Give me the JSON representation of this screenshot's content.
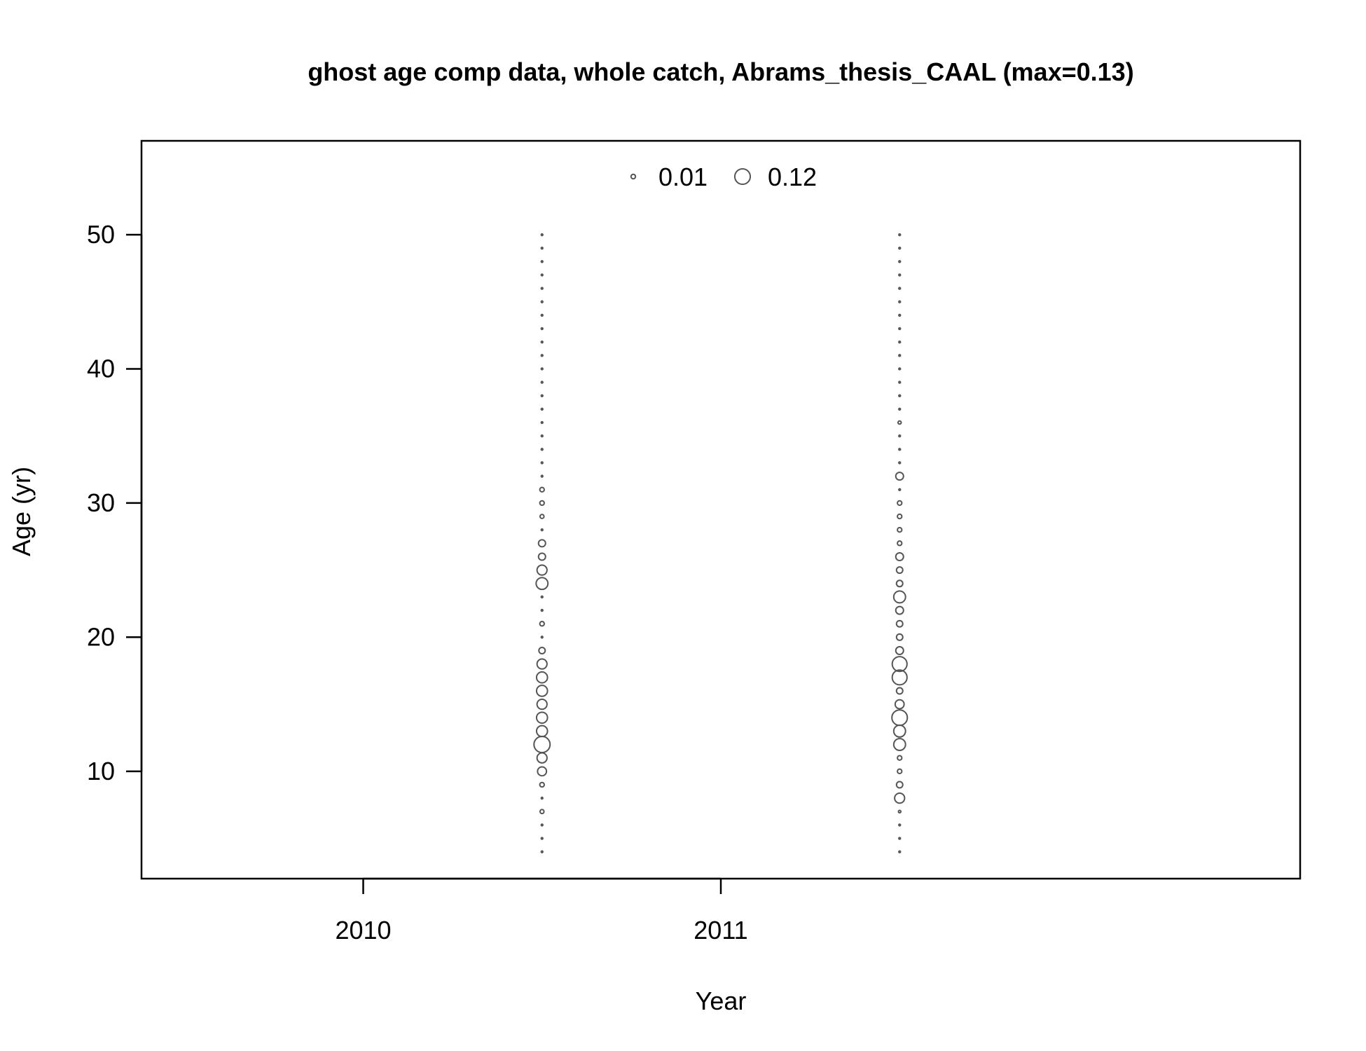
{
  "chart_data": {
    "type": "scatter",
    "subtype": "bubble",
    "title": "ghost age comp data, whole catch, Abrams_thesis_CAAL (max=0.13)",
    "xlabel": "Year",
    "ylabel": "Age (yr)",
    "xlim": [
      2009.38,
      2012.62
    ],
    "ylim": [
      2.0,
      57.0
    ],
    "xticks": [
      2010,
      2011
    ],
    "yticks": [
      10,
      20,
      30,
      40,
      50
    ],
    "grid": false,
    "legend": {
      "position": "top",
      "entries": [
        {
          "label": "0.01",
          "value": 0.01
        },
        {
          "label": "0.12",
          "value": 0.12
        }
      ]
    },
    "max_value": 0.13,
    "point_color": "#555555",
    "series": [
      {
        "x": 2010.5,
        "ages": [
          4,
          5,
          6,
          7,
          8,
          9,
          10,
          11,
          12,
          13,
          14,
          15,
          16,
          17,
          18,
          19,
          20,
          21,
          22,
          23,
          24,
          25,
          26,
          27,
          28,
          29,
          30,
          31,
          32,
          33,
          34,
          35,
          36,
          37,
          38,
          39,
          40,
          41,
          42,
          43,
          44,
          45,
          46,
          47,
          48,
          49,
          50
        ],
        "values": [
          0.001,
          0.001,
          0.001,
          0.008,
          0.001,
          0.01,
          0.04,
          0.05,
          0.13,
          0.06,
          0.06,
          0.05,
          0.06,
          0.06,
          0.05,
          0.02,
          0.001,
          0.01,
          0.001,
          0.001,
          0.07,
          0.05,
          0.025,
          0.025,
          0.001,
          0.008,
          0.01,
          0.01,
          0.001,
          0.001,
          0.001,
          0.001,
          0.001,
          0.001,
          0.001,
          0.001,
          0.001,
          0.001,
          0.001,
          0.001,
          0.001,
          0.001,
          0.001,
          0.001,
          0.001,
          0.001,
          0.001
        ]
      },
      {
        "x": 2011.5,
        "ages": [
          4,
          5,
          6,
          7,
          8,
          9,
          10,
          11,
          12,
          13,
          14,
          15,
          16,
          17,
          18,
          19,
          20,
          21,
          22,
          23,
          24,
          25,
          26,
          27,
          28,
          29,
          30,
          31,
          32,
          33,
          34,
          35,
          36,
          37,
          38,
          39,
          40,
          41,
          42,
          43,
          44,
          45,
          46,
          47,
          48,
          49,
          50
        ],
        "values": [
          0.001,
          0.001,
          0.001,
          0.003,
          0.05,
          0.02,
          0.01,
          0.01,
          0.07,
          0.07,
          0.12,
          0.04,
          0.02,
          0.11,
          0.11,
          0.03,
          0.02,
          0.02,
          0.03,
          0.07,
          0.02,
          0.02,
          0.03,
          0.01,
          0.01,
          0.01,
          0.01,
          0.001,
          0.03,
          0.001,
          0.001,
          0.001,
          0.005,
          0.001,
          0.001,
          0.001,
          0.001,
          0.001,
          0.001,
          0.001,
          0.001,
          0.001,
          0.001,
          0.001,
          0.001,
          0.001,
          0.001
        ]
      }
    ]
  }
}
